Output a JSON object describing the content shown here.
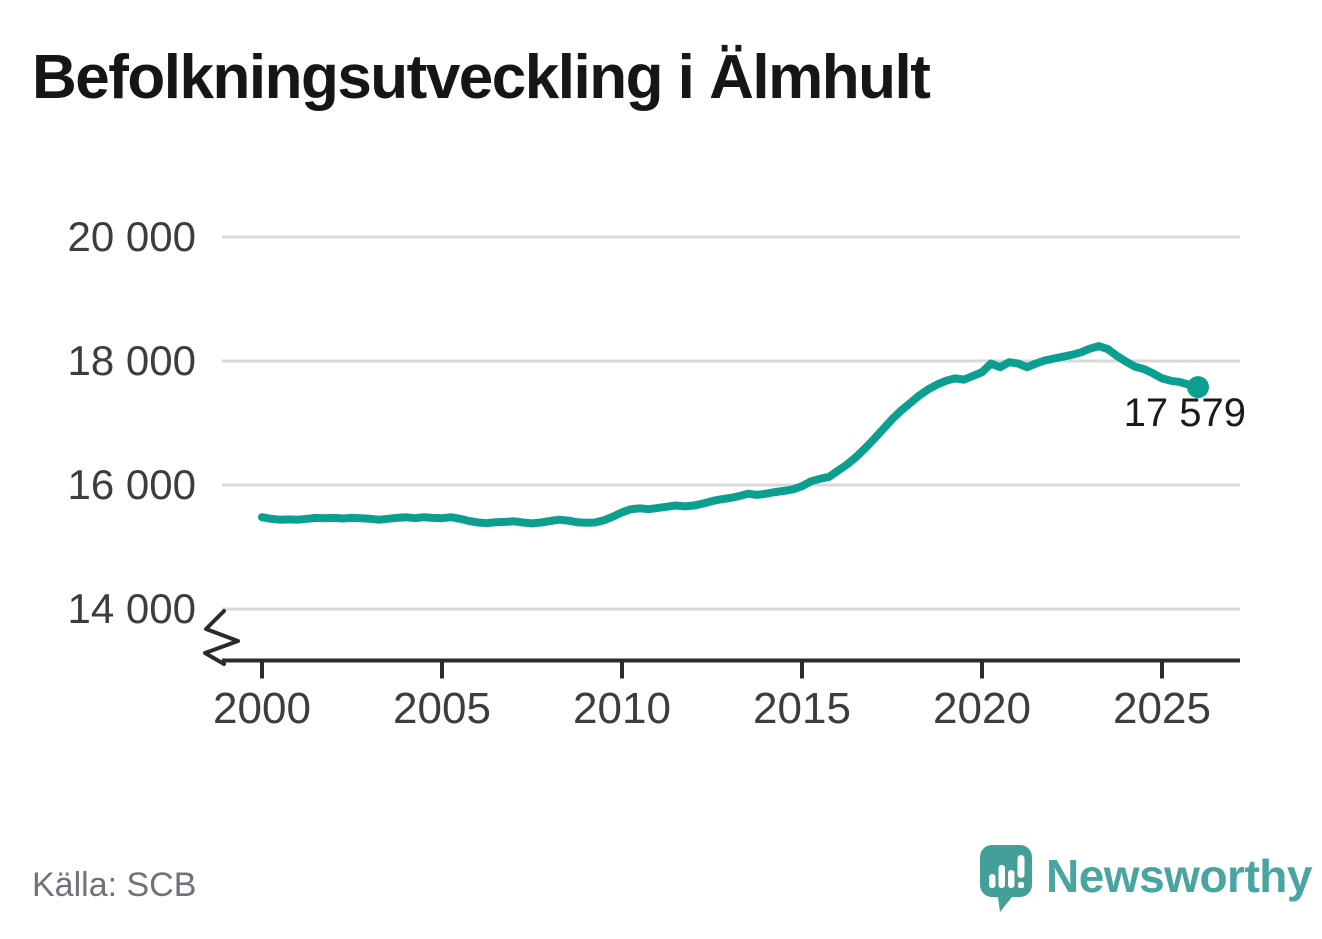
{
  "title": "Befolkningsutveckling i Älmhult",
  "source": "Källa: SCB",
  "branding": {
    "name": "Newsworthy",
    "icon": "newsworthy-speech-bubble-bar-chart"
  },
  "end_label": "17 579",
  "colors": {
    "line": "#0b9f90",
    "grid": "#d9d9d9",
    "axis": "#2b2b2b",
    "title_text": "#161616",
    "tick_text": "#3d3d3d",
    "source_text": "#71717a",
    "brand_text": "#4aa4a1",
    "brand_icon": "#43a099",
    "background": "#ffffff"
  },
  "chart_data": {
    "type": "line",
    "title": "Befolkningsutveckling i Älmhult",
    "subtitle": "",
    "xlabel": "",
    "ylabel": "",
    "source": "Källa: SCB",
    "grid": "horizontal-only",
    "legend": "none",
    "broken_y_axis": true,
    "x_axis": {
      "range": [
        1998.9,
        2027.2
      ],
      "ticks": [
        {
          "value": 2000,
          "label": "2000"
        },
        {
          "value": 2005,
          "label": "2005"
        },
        {
          "value": 2010,
          "label": "2010"
        },
        {
          "value": 2015,
          "label": "2015"
        },
        {
          "value": 2020,
          "label": "2020"
        },
        {
          "value": 2025,
          "label": "2025"
        }
      ]
    },
    "y_axis": {
      "range_shown": [
        13350,
        20450
      ],
      "ticks": [
        {
          "value": 20000,
          "label": "20 000"
        },
        {
          "value": 18000,
          "label": "18 000"
        },
        {
          "value": 16000,
          "label": "16 000"
        },
        {
          "value": 14000,
          "label": "14 000"
        }
      ]
    },
    "last_point": {
      "x": 2026.0,
      "value": 17579,
      "label": "17 579"
    },
    "series": [
      {
        "name": "Befolkning",
        "color": "#0b9f90",
        "points": [
          [
            2000.0,
            15480
          ],
          [
            2000.25,
            15455
          ],
          [
            2000.5,
            15440
          ],
          [
            2000.75,
            15445
          ],
          [
            2001.0,
            15440
          ],
          [
            2001.25,
            15455
          ],
          [
            2001.5,
            15470
          ],
          [
            2001.75,
            15465
          ],
          [
            2002.0,
            15470
          ],
          [
            2002.25,
            15460
          ],
          [
            2002.5,
            15470
          ],
          [
            2002.75,
            15465
          ],
          [
            2003.0,
            15455
          ],
          [
            2003.25,
            15440
          ],
          [
            2003.5,
            15455
          ],
          [
            2003.75,
            15470
          ],
          [
            2004.0,
            15480
          ],
          [
            2004.25,
            15465
          ],
          [
            2004.5,
            15480
          ],
          [
            2004.75,
            15470
          ],
          [
            2005.0,
            15465
          ],
          [
            2005.25,
            15480
          ],
          [
            2005.5,
            15455
          ],
          [
            2005.75,
            15420
          ],
          [
            2006.0,
            15395
          ],
          [
            2006.25,
            15385
          ],
          [
            2006.5,
            15400
          ],
          [
            2006.75,
            15405
          ],
          [
            2007.0,
            15415
          ],
          [
            2007.25,
            15395
          ],
          [
            2007.5,
            15380
          ],
          [
            2007.75,
            15395
          ],
          [
            2008.0,
            15420
          ],
          [
            2008.25,
            15440
          ],
          [
            2008.5,
            15425
          ],
          [
            2008.75,
            15400
          ],
          [
            2009.0,
            15390
          ],
          [
            2009.25,
            15395
          ],
          [
            2009.5,
            15430
          ],
          [
            2009.75,
            15490
          ],
          [
            2010.0,
            15560
          ],
          [
            2010.25,
            15610
          ],
          [
            2010.5,
            15625
          ],
          [
            2010.75,
            15610
          ],
          [
            2011.0,
            15630
          ],
          [
            2011.25,
            15650
          ],
          [
            2011.5,
            15670
          ],
          [
            2011.75,
            15655
          ],
          [
            2012.0,
            15670
          ],
          [
            2012.25,
            15700
          ],
          [
            2012.5,
            15740
          ],
          [
            2012.75,
            15770
          ],
          [
            2013.0,
            15790
          ],
          [
            2013.25,
            15820
          ],
          [
            2013.5,
            15860
          ],
          [
            2013.75,
            15840
          ],
          [
            2014.0,
            15860
          ],
          [
            2014.25,
            15885
          ],
          [
            2014.5,
            15905
          ],
          [
            2014.75,
            15930
          ],
          [
            2015.0,
            15980
          ],
          [
            2015.25,
            16060
          ],
          [
            2015.5,
            16100
          ],
          [
            2015.75,
            16130
          ],
          [
            2016.0,
            16230
          ],
          [
            2016.25,
            16330
          ],
          [
            2016.5,
            16450
          ],
          [
            2016.75,
            16590
          ],
          [
            2017.0,
            16740
          ],
          [
            2017.25,
            16900
          ],
          [
            2017.5,
            17060
          ],
          [
            2017.75,
            17200
          ],
          [
            2018.0,
            17320
          ],
          [
            2018.25,
            17440
          ],
          [
            2018.5,
            17540
          ],
          [
            2018.75,
            17620
          ],
          [
            2019.0,
            17680
          ],
          [
            2019.25,
            17720
          ],
          [
            2019.5,
            17700
          ],
          [
            2019.75,
            17760
          ],
          [
            2020.0,
            17820
          ],
          [
            2020.25,
            17960
          ],
          [
            2020.5,
            17900
          ],
          [
            2020.75,
            17980
          ],
          [
            2021.0,
            17960
          ],
          [
            2021.25,
            17900
          ],
          [
            2021.5,
            17960
          ],
          [
            2021.75,
            18010
          ],
          [
            2022.0,
            18040
          ],
          [
            2022.25,
            18070
          ],
          [
            2022.5,
            18100
          ],
          [
            2022.75,
            18140
          ],
          [
            2023.0,
            18200
          ],
          [
            2023.25,
            18240
          ],
          [
            2023.5,
            18190
          ],
          [
            2023.75,
            18080
          ],
          [
            2024.0,
            17990
          ],
          [
            2024.25,
            17910
          ],
          [
            2024.5,
            17870
          ],
          [
            2024.75,
            17800
          ],
          [
            2025.0,
            17720
          ],
          [
            2025.25,
            17680
          ],
          [
            2025.5,
            17660
          ],
          [
            2025.75,
            17620
          ],
          [
            2026.0,
            17579
          ]
        ]
      }
    ]
  }
}
